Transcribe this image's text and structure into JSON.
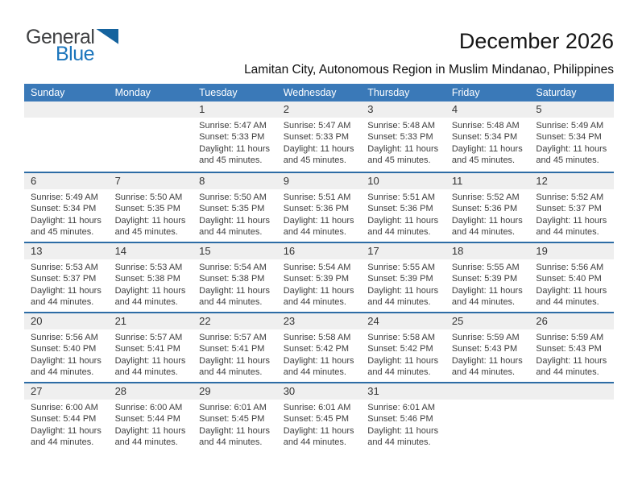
{
  "logo": {
    "general": "General",
    "blue": "Blue",
    "triangle_icon": "flag-triangle"
  },
  "title": "December 2026",
  "subtitle": "Lamitan City, Autonomous Region in Muslim Mindanao, Philippines",
  "colors": {
    "header_bg": "#3a79b8",
    "row_divider": "#2d6ca5",
    "day_band": "#efefef",
    "accent_blue": "#1b75bc",
    "logo_triangle": "#15639e"
  },
  "labels": {
    "sunrise": "Sunrise:",
    "sunset": "Sunset:",
    "daylight": "Daylight:"
  },
  "weekdays": [
    "Sunday",
    "Monday",
    "Tuesday",
    "Wednesday",
    "Thursday",
    "Friday",
    "Saturday"
  ],
  "weeks": [
    [
      {
        "day": ""
      },
      {
        "day": ""
      },
      {
        "day": "1",
        "sunrise": "5:47 AM",
        "sunset": "5:33 PM",
        "daylight": "11 hours and 45 minutes."
      },
      {
        "day": "2",
        "sunrise": "5:47 AM",
        "sunset": "5:33 PM",
        "daylight": "11 hours and 45 minutes."
      },
      {
        "day": "3",
        "sunrise": "5:48 AM",
        "sunset": "5:33 PM",
        "daylight": "11 hours and 45 minutes."
      },
      {
        "day": "4",
        "sunrise": "5:48 AM",
        "sunset": "5:34 PM",
        "daylight": "11 hours and 45 minutes."
      },
      {
        "day": "5",
        "sunrise": "5:49 AM",
        "sunset": "5:34 PM",
        "daylight": "11 hours and 45 minutes."
      }
    ],
    [
      {
        "day": "6",
        "sunrise": "5:49 AM",
        "sunset": "5:34 PM",
        "daylight": "11 hours and 45 minutes."
      },
      {
        "day": "7",
        "sunrise": "5:50 AM",
        "sunset": "5:35 PM",
        "daylight": "11 hours and 45 minutes."
      },
      {
        "day": "8",
        "sunrise": "5:50 AM",
        "sunset": "5:35 PM",
        "daylight": "11 hours and 44 minutes."
      },
      {
        "day": "9",
        "sunrise": "5:51 AM",
        "sunset": "5:36 PM",
        "daylight": "11 hours and 44 minutes."
      },
      {
        "day": "10",
        "sunrise": "5:51 AM",
        "sunset": "5:36 PM",
        "daylight": "11 hours and 44 minutes."
      },
      {
        "day": "11",
        "sunrise": "5:52 AM",
        "sunset": "5:36 PM",
        "daylight": "11 hours and 44 minutes."
      },
      {
        "day": "12",
        "sunrise": "5:52 AM",
        "sunset": "5:37 PM",
        "daylight": "11 hours and 44 minutes."
      }
    ],
    [
      {
        "day": "13",
        "sunrise": "5:53 AM",
        "sunset": "5:37 PM",
        "daylight": "11 hours and 44 minutes."
      },
      {
        "day": "14",
        "sunrise": "5:53 AM",
        "sunset": "5:38 PM",
        "daylight": "11 hours and 44 minutes."
      },
      {
        "day": "15",
        "sunrise": "5:54 AM",
        "sunset": "5:38 PM",
        "daylight": "11 hours and 44 minutes."
      },
      {
        "day": "16",
        "sunrise": "5:54 AM",
        "sunset": "5:39 PM",
        "daylight": "11 hours and 44 minutes."
      },
      {
        "day": "17",
        "sunrise": "5:55 AM",
        "sunset": "5:39 PM",
        "daylight": "11 hours and 44 minutes."
      },
      {
        "day": "18",
        "sunrise": "5:55 AM",
        "sunset": "5:39 PM",
        "daylight": "11 hours and 44 minutes."
      },
      {
        "day": "19",
        "sunrise": "5:56 AM",
        "sunset": "5:40 PM",
        "daylight": "11 hours and 44 minutes."
      }
    ],
    [
      {
        "day": "20",
        "sunrise": "5:56 AM",
        "sunset": "5:40 PM",
        "daylight": "11 hours and 44 minutes."
      },
      {
        "day": "21",
        "sunrise": "5:57 AM",
        "sunset": "5:41 PM",
        "daylight": "11 hours and 44 minutes."
      },
      {
        "day": "22",
        "sunrise": "5:57 AM",
        "sunset": "5:41 PM",
        "daylight": "11 hours and 44 minutes."
      },
      {
        "day": "23",
        "sunrise": "5:58 AM",
        "sunset": "5:42 PM",
        "daylight": "11 hours and 44 minutes."
      },
      {
        "day": "24",
        "sunrise": "5:58 AM",
        "sunset": "5:42 PM",
        "daylight": "11 hours and 44 minutes."
      },
      {
        "day": "25",
        "sunrise": "5:59 AM",
        "sunset": "5:43 PM",
        "daylight": "11 hours and 44 minutes."
      },
      {
        "day": "26",
        "sunrise": "5:59 AM",
        "sunset": "5:43 PM",
        "daylight": "11 hours and 44 minutes."
      }
    ],
    [
      {
        "day": "27",
        "sunrise": "6:00 AM",
        "sunset": "5:44 PM",
        "daylight": "11 hours and 44 minutes."
      },
      {
        "day": "28",
        "sunrise": "6:00 AM",
        "sunset": "5:44 PM",
        "daylight": "11 hours and 44 minutes."
      },
      {
        "day": "29",
        "sunrise": "6:01 AM",
        "sunset": "5:45 PM",
        "daylight": "11 hours and 44 minutes."
      },
      {
        "day": "30",
        "sunrise": "6:01 AM",
        "sunset": "5:45 PM",
        "daylight": "11 hours and 44 minutes."
      },
      {
        "day": "31",
        "sunrise": "6:01 AM",
        "sunset": "5:46 PM",
        "daylight": "11 hours and 44 minutes."
      },
      {
        "day": ""
      },
      {
        "day": ""
      }
    ]
  ]
}
